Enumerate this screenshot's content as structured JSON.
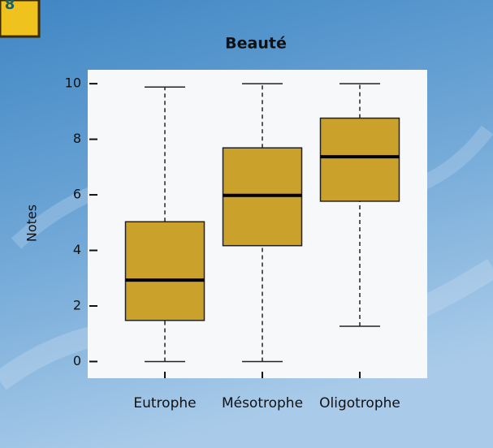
{
  "badge": "8",
  "chart_data": {
    "type": "box",
    "title": "Beauté",
    "y_label": "Notes",
    "categories": [
      "Eutrophe",
      "Mésotrophe",
      "Oligotrophe"
    ],
    "min": [
      0,
      0,
      1.27
    ],
    "q1": [
      1.48,
      4.17,
      5.77
    ],
    "median": [
      2.93,
      5.98,
      7.37
    ],
    "q3": [
      5.03,
      7.69,
      8.76
    ],
    "max": [
      9.88,
      10,
      10
    ],
    "color": "#c9a12b",
    "ylim": [
      -0.6,
      10.5
    ],
    "yticks": [
      0,
      2,
      4,
      6,
      8,
      10
    ]
  }
}
